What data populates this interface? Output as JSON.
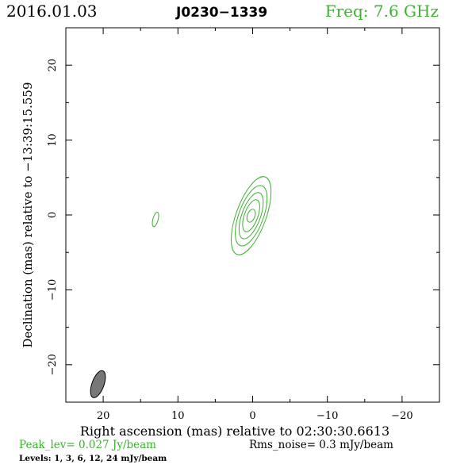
{
  "header": {
    "date": "2016.01.03",
    "source": "J0230−1339",
    "freq": "Freq: 7.6 GHz"
  },
  "footer": {
    "peak": "Peak_lev=  0.027 Jy/beam",
    "rms": "Rms_noise=   0.3 mJy/beam",
    "levels": "Levels:   1,   3,   6,  12,  24 mJy/beam"
  },
  "colors": {
    "contour": "#3cb22f",
    "beam_fill": "#777777",
    "axes": "#000000"
  },
  "chart_data": {
    "type": "contour",
    "xlabel": "Right ascension (mas) relative to 02:30:30.6613",
    "ylabel": "Declination (mas) relative to −13:39:15.559",
    "xlim": [
      25,
      -25
    ],
    "ylim": [
      -25,
      25
    ],
    "xticks": [
      20,
      10,
      0,
      -10,
      -20
    ],
    "xtick_labels": [
      "20",
      "10",
      "0",
      "−10",
      "−20"
    ],
    "yticks": [
      20,
      10,
      0,
      -10,
      -20
    ],
    "ytick_labels": [
      "20",
      "10",
      "0",
      "−10",
      "−20"
    ],
    "contour_levels_mJy": [
      1,
      3,
      6,
      12,
      24
    ],
    "peak_Jy_per_beam": 0.027,
    "rms_mJy_per_beam": 0.3,
    "components": [
      {
        "x": 0.2,
        "y": -0.1,
        "major": [
          11.0,
          8.5,
          6.5,
          4.5,
          1.8
        ],
        "minor": [
          4.0,
          3.3,
          2.5,
          1.8,
          1.0
        ],
        "pa": 160
      },
      {
        "x": 13.0,
        "y": -0.6,
        "major": [
          2.0
        ],
        "minor": [
          0.7
        ],
        "pa": 165
      }
    ],
    "beam": {
      "x": 20.7,
      "y": -22.6,
      "major": 3.8,
      "minor": 1.6,
      "pa": 160
    }
  }
}
